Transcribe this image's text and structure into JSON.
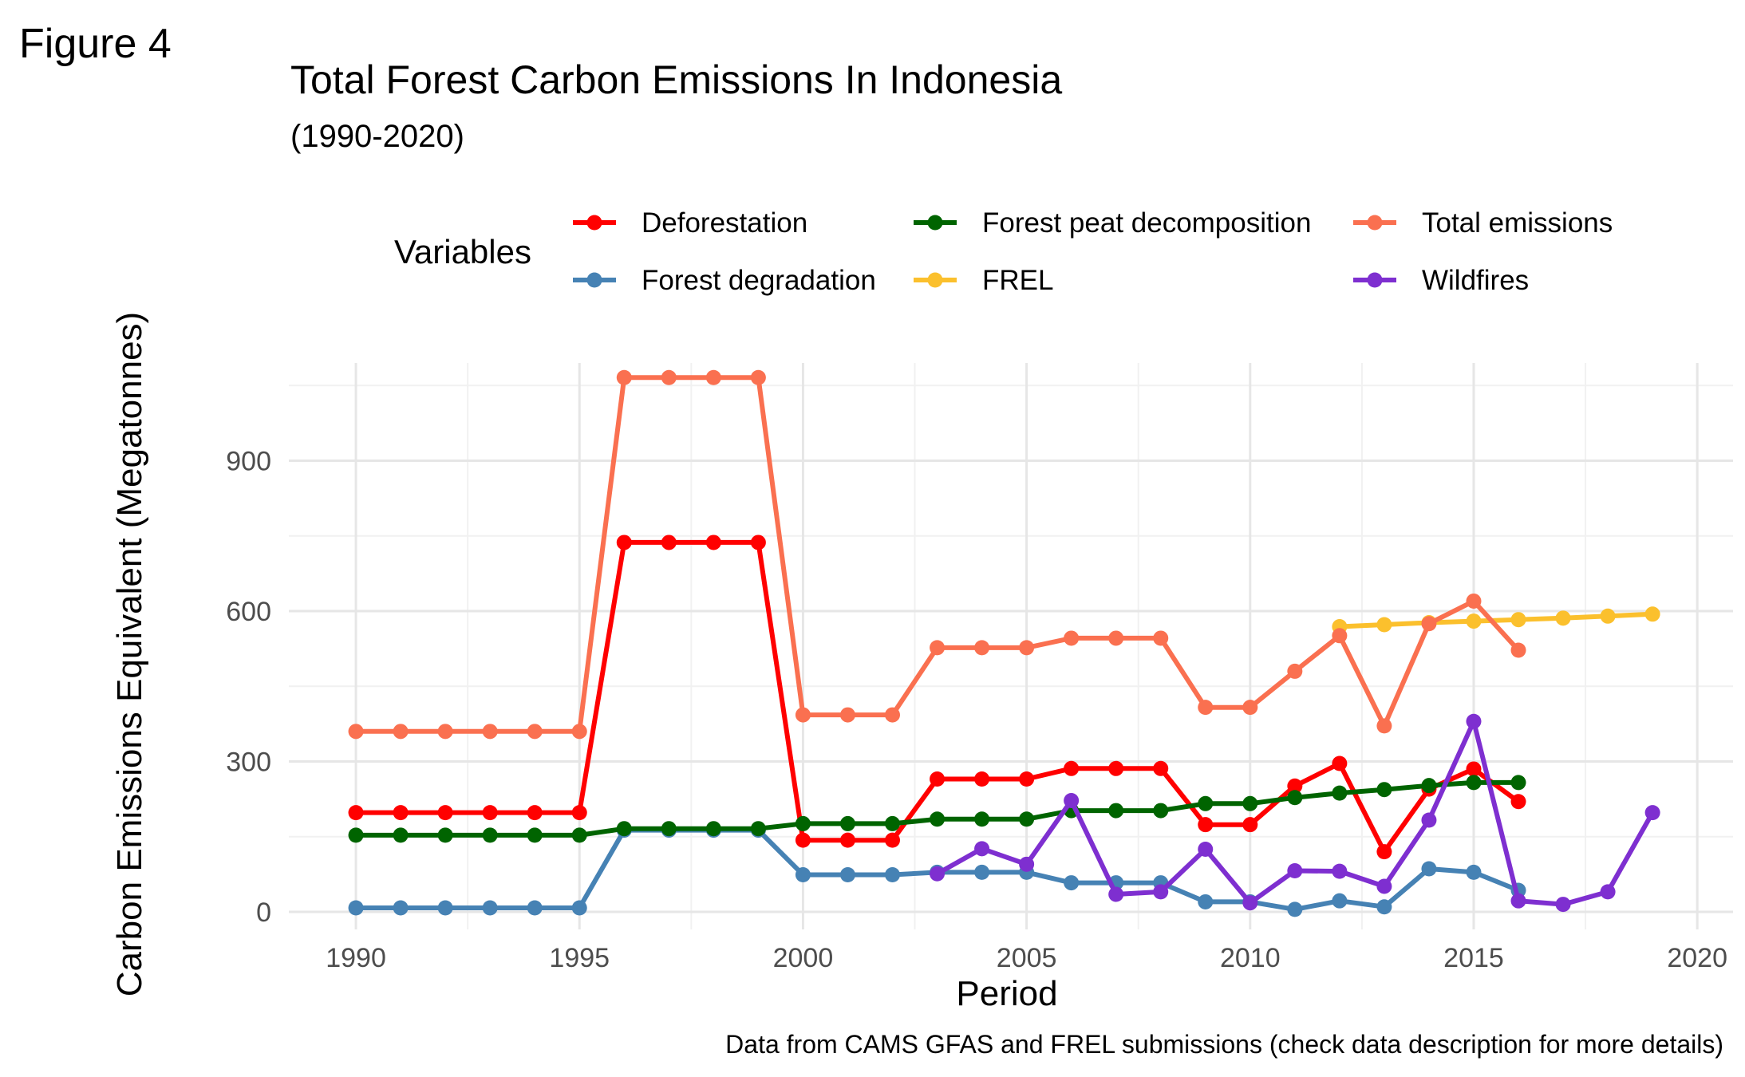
{
  "figure_label": "Figure 4",
  "caption": "Data from CAMS GFAS and FREL submissions (check data description for more details)",
  "chart_data": {
    "type": "line",
    "title": "Total Forest Carbon Emissions In Indonesia",
    "subtitle": "(1990-2020)",
    "xlabel": "Period",
    "ylabel": "Carbon Emissions Equivalent (Megatonnes)",
    "xlim": [
      1988.5,
      2020.8
    ],
    "ylim": [
      -35,
      1095
    ],
    "x_ticks": [
      1990,
      1995,
      2000,
      2005,
      2010,
      2015,
      2020
    ],
    "y_ticks": [
      0,
      300,
      600,
      900
    ],
    "grid": true,
    "legend": {
      "title": "Variables",
      "position": "top",
      "order": [
        "Deforestation",
        "Forest degradation",
        "Forest peat decomposition",
        "FREL",
        "Total emissions",
        "Wildfires"
      ]
    },
    "series": [
      {
        "name": "Deforestation",
        "color": "#ff0000",
        "x": [
          1990,
          1991,
          1992,
          1993,
          1994,
          1995,
          1996,
          1997,
          1998,
          1999,
          2000,
          2001,
          2002,
          2003,
          2004,
          2005,
          2006,
          2007,
          2008,
          2009,
          2010,
          2011,
          2012,
          2013,
          2014,
          2015,
          2016
        ],
        "y": [
          198,
          198,
          198,
          198,
          198,
          198,
          737,
          737,
          737,
          737,
          143,
          143,
          143,
          265,
          265,
          265,
          286,
          286,
          286,
          174,
          174,
          251,
          296,
          120,
          245,
          285,
          220
        ]
      },
      {
        "name": "Forest degradation",
        "color": "#4682b4",
        "x": [
          1990,
          1991,
          1992,
          1993,
          1994,
          1995,
          1996,
          1997,
          1998,
          1999,
          2000,
          2001,
          2002,
          2003,
          2004,
          2005,
          2006,
          2007,
          2008,
          2009,
          2010,
          2011,
          2012,
          2013,
          2014,
          2015,
          2016
        ],
        "y": [
          8,
          8,
          8,
          8,
          8,
          8,
          163,
          163,
          163,
          163,
          74,
          74,
          74,
          79,
          79,
          79,
          58,
          58,
          58,
          20,
          20,
          5,
          22,
          10,
          86,
          79,
          43
        ]
      },
      {
        "name": "Forest peat decomposition",
        "color": "#006400",
        "x": [
          1990,
          1991,
          1992,
          1993,
          1994,
          1995,
          1996,
          1997,
          1998,
          1999,
          2000,
          2001,
          2002,
          2003,
          2004,
          2005,
          2006,
          2007,
          2008,
          2009,
          2010,
          2011,
          2012,
          2013,
          2014,
          2015,
          2016
        ],
        "y": [
          153,
          153,
          153,
          153,
          153,
          153,
          166,
          166,
          166,
          166,
          176,
          176,
          176,
          185,
          185,
          185,
          202,
          202,
          202,
          216,
          216,
          228,
          237,
          244,
          252,
          258,
          258
        ]
      },
      {
        "name": "FREL",
        "color": "#fbc02d",
        "x": [
          2012,
          2013,
          2014,
          2015,
          2016,
          2017,
          2018,
          2019
        ],
        "y": [
          569,
          573,
          577,
          580,
          583,
          586,
          590,
          594
        ]
      },
      {
        "name": "Total emissions",
        "color": "#fa7050",
        "x": [
          1990,
          1991,
          1992,
          1993,
          1994,
          1995,
          1996,
          1997,
          1998,
          1999,
          2000,
          2001,
          2002,
          2003,
          2004,
          2005,
          2006,
          2007,
          2008,
          2009,
          2010,
          2011,
          2012,
          2013,
          2014,
          2015,
          2016
        ],
        "y": [
          360,
          360,
          360,
          360,
          360,
          360,
          1066,
          1066,
          1066,
          1066,
          393,
          393,
          393,
          527,
          527,
          527,
          546,
          546,
          546,
          408,
          408,
          480,
          551,
          371,
          575,
          620,
          522
        ]
      },
      {
        "name": "Wildfires",
        "color": "#7e2fd0",
        "x": [
          2003,
          2004,
          2005,
          2006,
          2007,
          2008,
          2009,
          2010,
          2011,
          2012,
          2013,
          2014,
          2015,
          2016,
          2017,
          2018,
          2019
        ],
        "y": [
          76,
          126,
          95,
          222,
          35,
          40,
          125,
          18,
          82,
          81,
          51,
          183,
          380,
          22,
          15,
          40,
          198
        ]
      }
    ]
  }
}
